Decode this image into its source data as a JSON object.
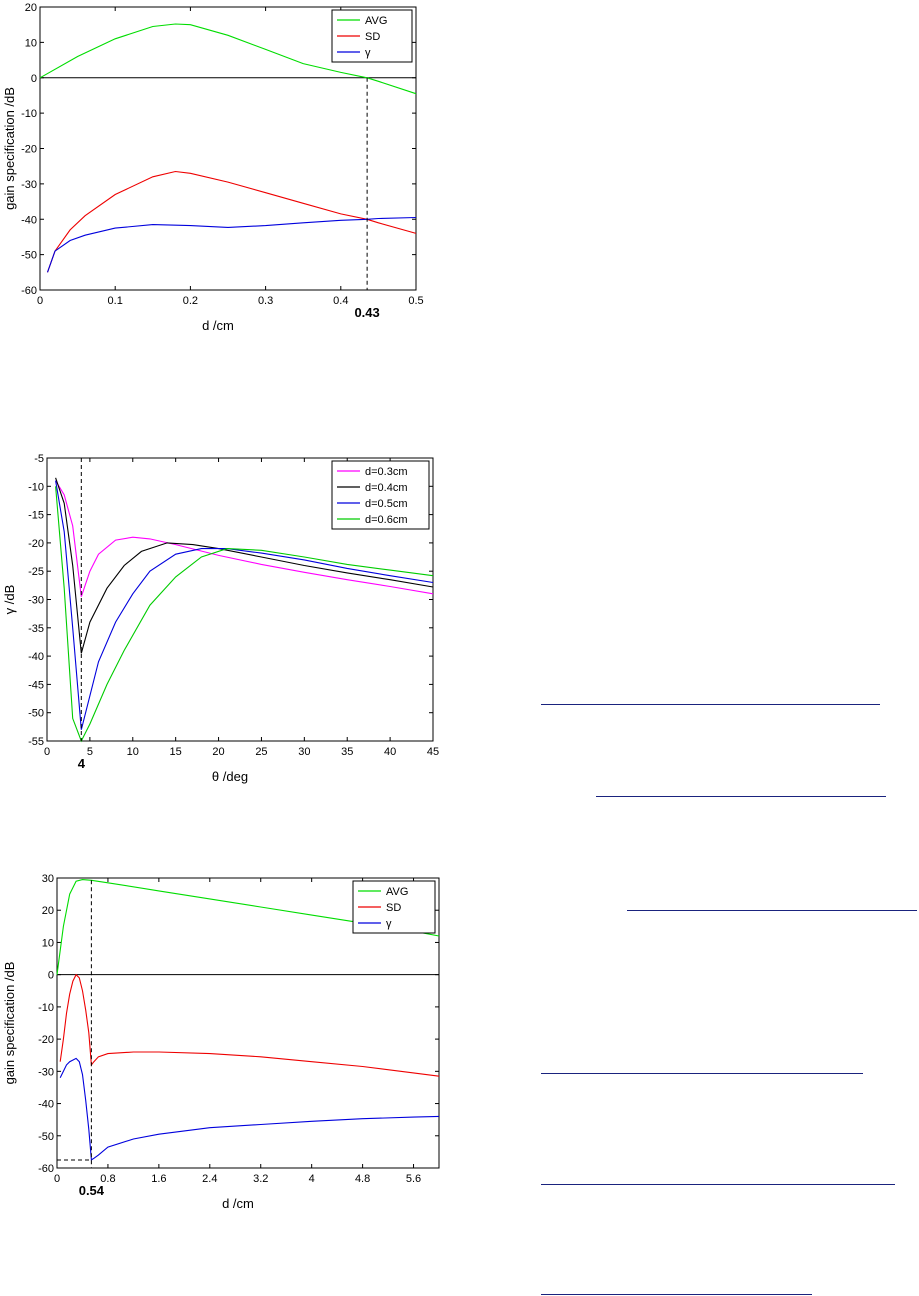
{
  "chart_data": [
    {
      "type": "line",
      "xlabel": "d /cm",
      "ylabel": "gain specification /dB",
      "xlim": [
        0,
        0.5
      ],
      "ylim": [
        -60,
        20
      ],
      "xticks": [
        "0",
        "0.1",
        "0.2",
        "0.3",
        "0.4",
        "0.5"
      ],
      "yticks": [
        "-60",
        "-50",
        "-40",
        "-30",
        "-20",
        "-10",
        "0",
        "10",
        "20"
      ],
      "zero_line": true,
      "legend_position": "top-right",
      "marker": {
        "x": 0.435,
        "label": "0.43"
      },
      "series": [
        {
          "name": "AVG",
          "color": "#00dd00",
          "x": [
            0,
            0.05,
            0.1,
            0.15,
            0.18,
            0.2,
            0.25,
            0.3,
            0.35,
            0.4,
            0.435,
            0.45,
            0.5
          ],
          "y": [
            0,
            6,
            11,
            14.5,
            15.2,
            15,
            12,
            8,
            4,
            1.5,
            0,
            -1,
            -4.5
          ]
        },
        {
          "name": "SD",
          "color": "#ee0000",
          "x": [
            0.01,
            0.02,
            0.04,
            0.06,
            0.1,
            0.15,
            0.18,
            0.2,
            0.25,
            0.3,
            0.35,
            0.4,
            0.435,
            0.45,
            0.5
          ],
          "y": [
            -55,
            -49,
            -43,
            -39,
            -33,
            -28,
            -26.5,
            -27,
            -29.5,
            -32.5,
            -35.5,
            -38.5,
            -40,
            -41,
            -44
          ]
        },
        {
          "name": "γ",
          "color": "#0000dd",
          "x": [
            0.01,
            0.02,
            0.04,
            0.06,
            0.1,
            0.15,
            0.2,
            0.25,
            0.3,
            0.35,
            0.4,
            0.435,
            0.45,
            0.5
          ],
          "y": [
            -55,
            -49,
            -46,
            -44.5,
            -42.5,
            -41.5,
            -41.8,
            -42.3,
            -41.8,
            -41,
            -40.3,
            -40,
            -39.8,
            -39.5
          ]
        }
      ]
    },
    {
      "type": "line",
      "xlabel": "θ /deg",
      "ylabel": "γ /dB",
      "xlim": [
        0,
        45
      ],
      "ylim": [
        -55,
        -5
      ],
      "xticks": [
        "0",
        "5",
        "10",
        "15",
        "20",
        "25",
        "30",
        "35",
        "40",
        "45"
      ],
      "yticks": [
        "-55",
        "-50",
        "-45",
        "-40",
        "-35",
        "-30",
        "-25",
        "-20",
        "-15",
        "-10",
        "-5"
      ],
      "zero_line": false,
      "legend_position": "top-right",
      "marker": {
        "x": 4,
        "label": "4"
      },
      "series": [
        {
          "name": "d=0.3cm",
          "color": "#ff00ff",
          "x": [
            1,
            2,
            3,
            4,
            5,
            6,
            8,
            10,
            12,
            15,
            20,
            25,
            30,
            35,
            40,
            45
          ],
          "y": [
            -9,
            -11.5,
            -17,
            -29.5,
            -25,
            -22,
            -19.5,
            -19,
            -19.3,
            -20.3,
            -22.2,
            -23.8,
            -25.2,
            -26.5,
            -27.7,
            -29
          ]
        },
        {
          "name": "d=0.4cm",
          "color": "#000000",
          "x": [
            1,
            2,
            3,
            4,
            5,
            7,
            9,
            11,
            14,
            17,
            20,
            25,
            30,
            35,
            40,
            45
          ],
          "y": [
            -8.5,
            -13,
            -24,
            -39.5,
            -34,
            -28,
            -24,
            -21.5,
            -20,
            -20.3,
            -21,
            -22.5,
            -24,
            -25.3,
            -26.5,
            -27.8
          ]
        },
        {
          "name": "d=0.5cm",
          "color": "#0000dd",
          "x": [
            1,
            2,
            3,
            4,
            5,
            6,
            8,
            10,
            12,
            15,
            18,
            21,
            25,
            30,
            35,
            40,
            45
          ],
          "y": [
            -9,
            -18,
            -35,
            -53,
            -47,
            -41,
            -34,
            -29,
            -25,
            -22,
            -21,
            -21,
            -21.8,
            -23,
            -24.5,
            -25.8,
            -27
          ]
        },
        {
          "name": "d=0.6cm",
          "color": "#00cc00",
          "x": [
            1,
            2,
            3,
            4,
            5,
            7,
            9,
            12,
            15,
            18,
            21,
            25,
            30,
            35,
            40,
            45
          ],
          "y": [
            -10,
            -28,
            -51,
            -55,
            -52,
            -45,
            -39,
            -31,
            -26,
            -22.5,
            -21,
            -21.3,
            -22.5,
            -23.8,
            -24.8,
            -25.8
          ]
        }
      ]
    },
    {
      "type": "line",
      "xlabel": "d /cm",
      "ylabel": "gain specification /dB",
      "xlim": [
        0,
        6
      ],
      "ylim": [
        -60,
        30
      ],
      "xticks": [
        "0",
        "0.8",
        "1.6",
        "2.4",
        "3.2",
        "4",
        "4.8",
        "5.6"
      ],
      "yticks": [
        "-60",
        "-50",
        "-40",
        "-30",
        "-20",
        "-10",
        "0",
        "10",
        "20",
        "30"
      ],
      "zero_line": true,
      "legend_position": "top-right",
      "marker": {
        "x": 0.54,
        "label": "0.54",
        "hy": -57.5
      },
      "series": [
        {
          "name": "AVG",
          "color": "#00dd00",
          "x": [
            0,
            0.1,
            0.2,
            0.3,
            0.4,
            0.54,
            0.8,
            1.6,
            2.4,
            3.2,
            4,
            4.8,
            5.6,
            6
          ],
          "y": [
            0,
            15,
            25,
            29,
            29.5,
            29.3,
            28.5,
            26,
            23.5,
            21,
            18.5,
            16,
            13.5,
            12
          ]
        },
        {
          "name": "SD",
          "color": "#ee0000",
          "x": [
            0.05,
            0.1,
            0.15,
            0.2,
            0.25,
            0.3,
            0.35,
            0.4,
            0.45,
            0.5,
            0.54,
            0.58,
            0.65,
            0.8,
            1.2,
            1.6,
            2.4,
            3.2,
            4,
            4.8,
            5.6,
            6
          ],
          "y": [
            -27,
            -20,
            -12,
            -6,
            -2,
            0,
            -1,
            -5,
            -11,
            -18,
            -28,
            -27,
            -25.5,
            -24.5,
            -24,
            -24,
            -24.5,
            -25.5,
            -27,
            -28.5,
            -30.5,
            -31.5
          ]
        },
        {
          "name": "γ",
          "color": "#0000dd",
          "x": [
            0.05,
            0.1,
            0.15,
            0.2,
            0.3,
            0.35,
            0.4,
            0.45,
            0.5,
            0.54,
            0.58,
            0.65,
            0.8,
            1.2,
            1.6,
            2.4,
            3.2,
            4,
            4.8,
            5.6,
            6
          ],
          "y": [
            -32,
            -30,
            -28,
            -27,
            -26,
            -27,
            -31,
            -39,
            -48,
            -57.5,
            -57,
            -56,
            -53.5,
            -51,
            -49.5,
            -47.5,
            -46.5,
            -45.5,
            -44.7,
            -44.2,
            -44
          ]
        }
      ]
    }
  ]
}
